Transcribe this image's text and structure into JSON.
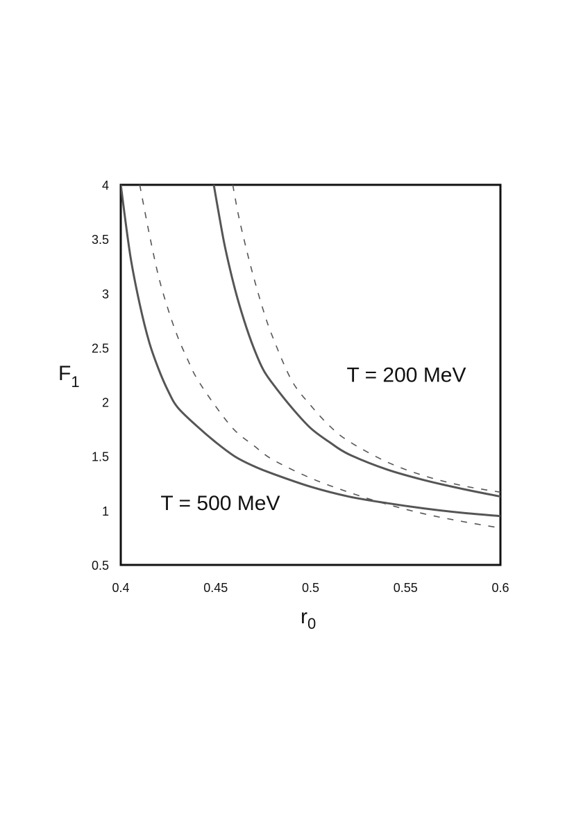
{
  "chart_data": {
    "type": "line",
    "title": "",
    "xlabel": {
      "main": "r",
      "sub": "0"
    },
    "ylabel": {
      "main": "F",
      "sub": "1"
    },
    "xlim": [
      0.4,
      0.6
    ],
    "ylim": [
      0.5,
      4
    ],
    "xticks": [
      0.4,
      0.45,
      0.5,
      0.55,
      0.6
    ],
    "xtick_labels": [
      "0.4",
      "0.45",
      "0.5",
      "0.55",
      "0.6"
    ],
    "yticks": [
      0.5,
      1,
      1.5,
      2,
      2.5,
      3,
      3.5,
      4
    ],
    "ytick_labels": [
      "0.5",
      "1",
      "1.5",
      "2",
      "2.5",
      "3",
      "3.5",
      "4"
    ],
    "grid": false,
    "legend": "none",
    "annotations": [
      {
        "text": "T = 200 MeV",
        "x": 0.519,
        "y": 2.25
      },
      {
        "text": "T = 500 MeV",
        "x": 0.421,
        "y": 1.07
      }
    ],
    "series": [
      {
        "style": "solid",
        "x": [
          0.4,
          0.405,
          0.41,
          0.415,
          0.42,
          0.425,
          0.43,
          0.44,
          0.45,
          0.46,
          0.47,
          0.48,
          0.5,
          0.52,
          0.54,
          0.56,
          0.58,
          0.6
        ],
        "y": [
          4.0,
          3.35,
          2.9,
          2.55,
          2.3,
          2.1,
          1.95,
          1.78,
          1.63,
          1.5,
          1.41,
          1.34,
          1.22,
          1.13,
          1.07,
          1.02,
          0.98,
          0.95
        ]
      },
      {
        "style": "dashed",
        "x": [
          0.41,
          0.415,
          0.42,
          0.425,
          0.43,
          0.435,
          0.44,
          0.45,
          0.46,
          0.47,
          0.48,
          0.5,
          0.52,
          0.54,
          0.56,
          0.58,
          0.6
        ],
        "y": [
          4.0,
          3.55,
          3.15,
          2.85,
          2.6,
          2.4,
          2.22,
          1.96,
          1.74,
          1.6,
          1.47,
          1.3,
          1.17,
          1.06,
          0.97,
          0.9,
          0.84
        ]
      },
      {
        "style": "solid",
        "x": [
          0.449,
          0.452,
          0.455,
          0.46,
          0.465,
          0.47,
          0.475,
          0.48,
          0.49,
          0.5,
          0.51,
          0.52,
          0.54,
          0.56,
          0.58,
          0.6
        ],
        "y": [
          4.0,
          3.7,
          3.42,
          3.05,
          2.75,
          2.5,
          2.3,
          2.17,
          1.95,
          1.76,
          1.63,
          1.52,
          1.38,
          1.28,
          1.2,
          1.13
        ]
      },
      {
        "style": "dashed",
        "x": [
          0.459,
          0.462,
          0.466,
          0.47,
          0.475,
          0.48,
          0.49,
          0.5,
          0.51,
          0.52,
          0.54,
          0.56,
          0.58,
          0.6
        ],
        "y": [
          4.0,
          3.72,
          3.42,
          3.15,
          2.85,
          2.6,
          2.2,
          1.97,
          1.78,
          1.64,
          1.45,
          1.32,
          1.23,
          1.17
        ]
      }
    ]
  }
}
